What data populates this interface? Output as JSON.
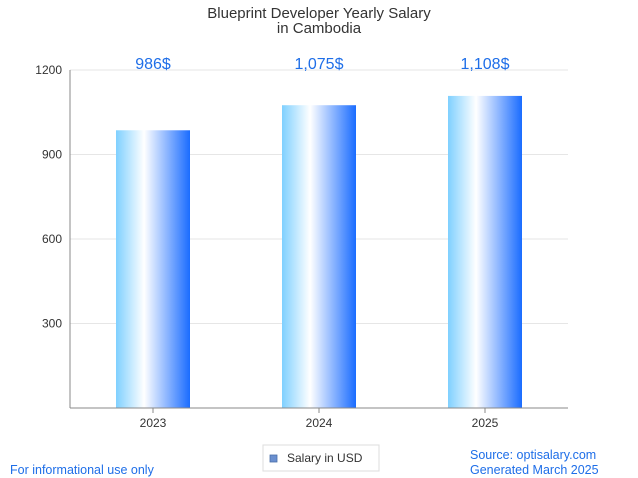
{
  "chart_data": {
    "type": "bar",
    "title": [
      "Blueprint Developer Yearly Salary",
      "in Cambodia"
    ],
    "categories": [
      "2023",
      "2024",
      "2025"
    ],
    "series": [
      {
        "name": "Salary in USD",
        "values": [
          986,
          1075,
          1108
        ]
      }
    ],
    "data_labels": [
      "986$",
      "1,075$",
      "1,108$"
    ],
    "yticks": [
      300,
      600,
      900,
      1200
    ],
    "ylim": [
      0,
      1200
    ],
    "grid": true,
    "legend": "bottom-center"
  },
  "footer": {
    "left": "For informational use only",
    "source": "Source: optisalary.com",
    "generated": "Generated March 2025"
  },
  "colors": {
    "bar_left": "#7fd0ff",
    "bar_mid": "#ffffff",
    "bar_right": "#1a6cff",
    "label": "#1e6ee8",
    "grid": "#e6e6e6"
  }
}
